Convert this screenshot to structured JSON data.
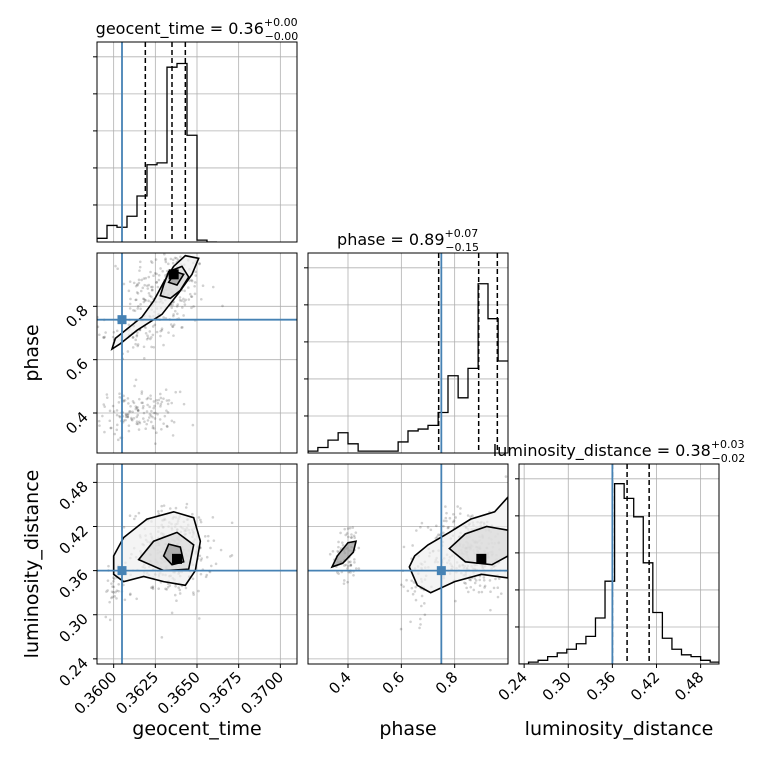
{
  "chart_data": {
    "type": "corner",
    "parameters": [
      "geocent_time",
      "phase",
      "luminosity_distance"
    ],
    "truths": {
      "geocent_time": 0.3605,
      "phase": 0.75,
      "luminosity_distance": 0.36
    },
    "colors": {
      "truth": "#4682b4",
      "hist": "#000000",
      "grid": "#b0b0b0"
    },
    "grid": true,
    "titles": {
      "geocent_time": {
        "name": "geocent_time",
        "value": "0.36",
        "plus": "+0.00",
        "minus": "−0.00"
      },
      "phase": {
        "name": "phase",
        "value": "0.89",
        "plus": "+0.07",
        "minus": "−0.15"
      },
      "luminosity_distance": {
        "name": "luminosity_distance",
        "value": "0.38",
        "plus": "+0.03",
        "minus": "−0.02"
      }
    },
    "axis_labels": {
      "geocent_time": "geocent_time",
      "phase": "phase",
      "luminosity_distance": "luminosity_distance"
    },
    "ranges": {
      "geocent_time": [
        0.359,
        0.371
      ],
      "phase": [
        0.25,
        1.0
      ],
      "luminosity_distance": [
        0.233,
        0.505
      ]
    },
    "ticks": {
      "geocent_time": {
        "values": [
          0.36,
          0.3625,
          0.365,
          0.3675,
          0.37
        ],
        "labels": [
          "0.3600",
          "0.3625",
          "0.3650",
          "0.3675",
          "0.3700"
        ]
      },
      "phase": {
        "values": [
          0.4,
          0.6,
          0.8
        ],
        "labels": [
          "0.4",
          "0.6",
          "0.8"
        ]
      },
      "luminosity_distance": {
        "values": [
          0.24,
          0.3,
          0.36,
          0.42,
          0.48
        ],
        "labels": [
          "0.24",
          "0.30",
          "0.36",
          "0.42",
          "0.48"
        ]
      }
    },
    "histograms": {
      "geocent_time": {
        "edges": [
          0.359,
          0.3596,
          0.3602,
          0.3608,
          0.3614,
          0.362,
          0.3626,
          0.3632,
          0.3638,
          0.3644,
          0.365,
          0.3656,
          0.3662
        ],
        "counts": [
          0.02,
          0.09,
          0.08,
          0.14,
          0.25,
          0.42,
          0.43,
          0.95,
          0.97,
          0.58,
          0.01,
          0.0
        ],
        "quantiles": [
          0.3619,
          0.3635,
          0.3643
        ]
      },
      "phase": {
        "edges": [
          0.25,
          0.287,
          0.325,
          0.363,
          0.4,
          0.438,
          0.475,
          0.513,
          0.55,
          0.588,
          0.625,
          0.663,
          0.7,
          0.738,
          0.775,
          0.813,
          0.85,
          0.888,
          0.925,
          0.963,
          1.0
        ],
        "counts": [
          0.01,
          0.03,
          0.07,
          0.11,
          0.05,
          0.01,
          0.01,
          0.01,
          0.01,
          0.06,
          0.12,
          0.13,
          0.15,
          0.22,
          0.42,
          0.3,
          0.46,
          0.92,
          0.73,
          0.5
        ],
        "quantiles": [
          0.74,
          0.89,
          0.96
        ]
      },
      "luminosity_distance": {
        "edges": [
          0.233,
          0.246,
          0.259,
          0.272,
          0.285,
          0.298,
          0.311,
          0.324,
          0.337,
          0.35,
          0.363,
          0.376,
          0.389,
          0.402,
          0.415,
          0.428,
          0.441,
          0.454,
          0.467,
          0.48,
          0.493,
          0.505
        ],
        "counts": [
          0.0,
          0.01,
          0.02,
          0.04,
          0.06,
          0.08,
          0.11,
          0.15,
          0.25,
          0.45,
          0.98,
          0.9,
          0.8,
          0.55,
          0.28,
          0.14,
          0.08,
          0.05,
          0.04,
          0.02,
          0.01
        ],
        "quantiles": [
          0.36,
          0.38,
          0.41
        ]
      }
    },
    "density_2d": [
      {
        "x": "geocent_time",
        "y": "phase",
        "modes": [
          [
            0.3636,
            0.92
          ]
        ],
        "contours": [
          [
            [
              0.3599,
              0.64
            ],
            [
              0.3601,
              0.68
            ],
            [
              0.3607,
              0.71
            ],
            [
              0.3617,
              0.76
            ],
            [
              0.3624,
              0.82
            ],
            [
              0.363,
              0.89
            ],
            [
              0.3636,
              0.95
            ],
            [
              0.3643,
              0.99
            ],
            [
              0.3651,
              0.98
            ],
            [
              0.3647,
              0.92
            ],
            [
              0.3639,
              0.85
            ],
            [
              0.3629,
              0.77
            ],
            [
              0.3614,
              0.71
            ],
            [
              0.3604,
              0.66
            ]
          ],
          [
            [
              0.3628,
              0.84
            ],
            [
              0.363,
              0.88
            ],
            [
              0.3633,
              0.93
            ],
            [
              0.3641,
              0.95
            ],
            [
              0.3645,
              0.91
            ],
            [
              0.364,
              0.86
            ],
            [
              0.3634,
              0.83
            ]
          ],
          [
            [
              0.3633,
              0.89
            ],
            [
              0.3637,
              0.93
            ],
            [
              0.3642,
              0.92
            ],
            [
              0.3638,
              0.88
            ]
          ]
        ],
        "clusters": [
          {
            "center": [
              0.3632,
              0.86
            ],
            "spread": [
              0.0012,
              0.08
            ],
            "n": 220
          },
          {
            "center": [
              0.3612,
              0.7
            ],
            "spread": [
              0.001,
              0.05
            ],
            "n": 80
          },
          {
            "center": [
              0.3614,
              0.4
            ],
            "spread": [
              0.0012,
              0.04
            ],
            "n": 150
          }
        ]
      },
      {
        "x": "geocent_time",
        "y": "luminosity_distance",
        "modes": [
          [
            0.3638,
            0.376
          ]
        ],
        "contours": [
          [
            [
              0.36,
              0.355
            ],
            [
              0.3606,
              0.345
            ],
            [
              0.3618,
              0.352
            ],
            [
              0.363,
              0.345
            ],
            [
              0.3643,
              0.34
            ],
            [
              0.3649,
              0.36
            ],
            [
              0.3652,
              0.4
            ],
            [
              0.3648,
              0.432
            ],
            [
              0.3636,
              0.44
            ],
            [
              0.362,
              0.43
            ],
            [
              0.3606,
              0.405
            ],
            [
              0.36,
              0.38
            ]
          ],
          [
            [
              0.3615,
              0.375
            ],
            [
              0.363,
              0.36
            ],
            [
              0.3645,
              0.362
            ],
            [
              0.3648,
              0.395
            ],
            [
              0.3638,
              0.412
            ],
            [
              0.3624,
              0.4
            ]
          ],
          [
            [
              0.363,
              0.38
            ],
            [
              0.3635,
              0.368
            ],
            [
              0.3642,
              0.372
            ],
            [
              0.364,
              0.392
            ],
            [
              0.3633,
              0.396
            ]
          ]
        ],
        "clusters": [
          {
            "center": [
              0.3635,
              0.385
            ],
            "spread": [
              0.0012,
              0.03
            ],
            "n": 320
          },
          {
            "center": [
              0.36,
              0.33
            ],
            "spread": [
              0.0003,
              0.015
            ],
            "n": 30
          }
        ]
      },
      {
        "x": "phase",
        "y": "luminosity_distance",
        "modes": [
          [
            0.9,
            0.376
          ]
        ],
        "contours": [
          [
            [
              0.63,
              0.365
            ],
            [
              0.66,
              0.34
            ],
            [
              0.71,
              0.33
            ],
            [
              0.8,
              0.345
            ],
            [
              0.9,
              0.355
            ],
            [
              1.0,
              0.35
            ],
            [
              1.0,
              0.46
            ],
            [
              0.95,
              0.44
            ],
            [
              0.86,
              0.43
            ],
            [
              0.78,
              0.412
            ],
            [
              0.7,
              0.395
            ],
            [
              0.65,
              0.38
            ]
          ],
          [
            [
              0.78,
              0.39
            ],
            [
              0.84,
              0.372
            ],
            [
              0.94,
              0.368
            ],
            [
              1.0,
              0.38
            ],
            [
              1.0,
              0.415
            ],
            [
              0.92,
              0.42
            ],
            [
              0.84,
              0.41
            ]
          ],
          [
            [
              0.34,
              0.365
            ],
            [
              0.38,
              0.37
            ],
            [
              0.42,
              0.385
            ],
            [
              0.43,
              0.4
            ],
            [
              0.4,
              0.398
            ],
            [
              0.36,
              0.38
            ]
          ]
        ],
        "clusters": [
          {
            "center": [
              0.86,
              0.385
            ],
            "spread": [
              0.08,
              0.03
            ],
            "n": 300
          },
          {
            "center": [
              0.4,
              0.385
            ],
            "spread": [
              0.025,
              0.02
            ],
            "n": 70
          },
          {
            "center": [
              0.66,
              0.34
            ],
            "spread": [
              0.03,
              0.025
            ],
            "n": 40
          }
        ]
      }
    ]
  }
}
